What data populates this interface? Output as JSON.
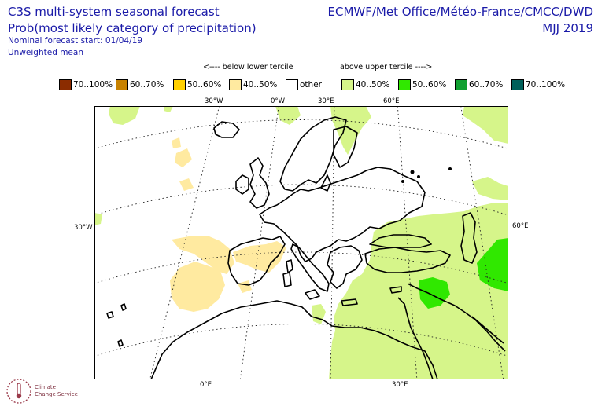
{
  "header": {
    "title_line1": "C3S multi-system seasonal forecast",
    "title_line2": "Prob(most likely category of precipitation)",
    "start_label": "Nominal forecast start: 01/04/19",
    "mean_label": "Unweighted mean",
    "organisations": "ECMWF/Met Office/Météo-France/CMCC/DWD",
    "period": "MJJ 2019"
  },
  "legend": {
    "below_heading": "<---- below lower tercile",
    "above_heading": "above upper tercile ---->",
    "items": [
      {
        "label": "70..100%",
        "color": "#8b2c00"
      },
      {
        "label": "60..70%",
        "color": "#c88200"
      },
      {
        "label": "50..60%",
        "color": "#ffd000"
      },
      {
        "label": "40..50%",
        "color": "#ffeaa0"
      },
      {
        "label": "other",
        "color": "#ffffff"
      },
      {
        "label": "40..50%",
        "color": "#d6f58a"
      },
      {
        "label": "50..60%",
        "color": "#30e800"
      },
      {
        "label": "60..70%",
        "color": "#10a030"
      },
      {
        "label": "70..100%",
        "color": "#00605a"
      }
    ]
  },
  "map": {
    "lon_labels": {
      "top": [
        "30°W",
        "0°W",
        "30°E",
        "60°E"
      ],
      "bottom": [
        "0°E",
        "30°E"
      ],
      "left": "30°W",
      "right": "60°E"
    }
  },
  "logo": {
    "line1": "Climate",
    "line2": "Change Service"
  }
}
